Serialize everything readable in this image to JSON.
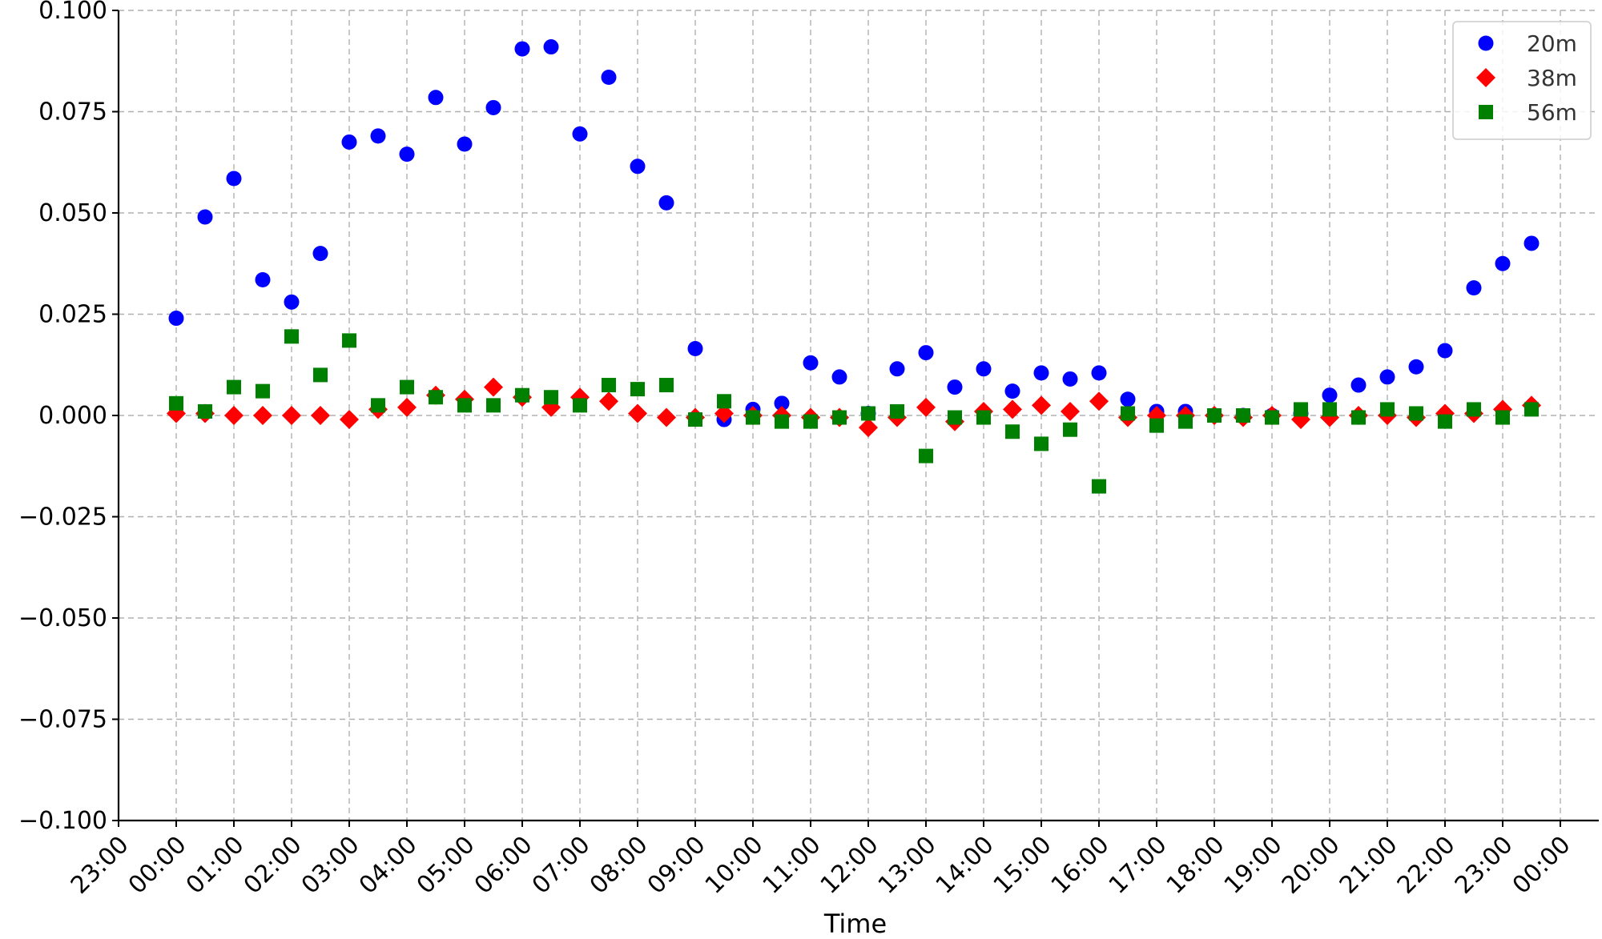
{
  "chart_data": {
    "type": "scatter",
    "title": "",
    "xlabel": "Time",
    "ylabel": "",
    "x_tick_labels": [
      "23:00",
      "00:00",
      "01:00",
      "02:00",
      "03:00",
      "04:00",
      "05:00",
      "06:00",
      "07:00",
      "08:00",
      "09:00",
      "10:00",
      "11:00",
      "12:00",
      "13:00",
      "14:00",
      "15:00",
      "16:00",
      "17:00",
      "18:00",
      "19:00",
      "20:00",
      "21:00",
      "22:00",
      "23:00",
      "00:00"
    ],
    "y_tick_labels": [
      "0.100",
      "0.075",
      "0.050",
      "0.025",
      "0.000",
      "−0.025",
      "−0.050",
      "−0.075",
      "−0.100"
    ],
    "y_ticks": [
      0.1,
      0.075,
      0.05,
      0.025,
      0,
      -0.025,
      -0.05,
      -0.075,
      -0.1
    ],
    "xlim": [
      "23:00",
      "00:00"
    ],
    "ylim": [
      -0.1,
      0.1
    ],
    "grid": true,
    "legend_position": "top-right",
    "x": [
      "00:00",
      "00:30",
      "01:00",
      "01:30",
      "02:00",
      "02:30",
      "03:00",
      "03:30",
      "04:00",
      "04:30",
      "05:00",
      "05:30",
      "06:00",
      "06:30",
      "07:00",
      "07:30",
      "08:00",
      "08:30",
      "09:00",
      "09:30",
      "10:00",
      "10:30",
      "11:00",
      "11:30",
      "12:00",
      "12:30",
      "13:00",
      "13:30",
      "14:00",
      "14:30",
      "15:00",
      "15:30",
      "16:00",
      "16:30",
      "17:00",
      "17:30",
      "18:00",
      "18:30",
      "19:00",
      "19:30",
      "20:00",
      "20:30",
      "21:00",
      "21:30",
      "22:00",
      "22:30",
      "23:00",
      "23:30"
    ],
    "series": [
      {
        "name": "20m",
        "color": "#0000ff",
        "marker": "circle",
        "values": [
          0.024,
          0.049,
          0.0585,
          0.0335,
          0.028,
          0.04,
          0.0675,
          0.069,
          0.0645,
          0.0785,
          0.067,
          0.076,
          0.0905,
          0.091,
          0.0695,
          0.0835,
          0.0615,
          0.0525,
          0.0165,
          -0.001,
          0.0015,
          0.003,
          0.013,
          0.0095,
          0.0005,
          0.0115,
          0.0155,
          0.007,
          0.0115,
          0.006,
          0.0105,
          0.009,
          0.0105,
          0.004,
          0.001,
          0.001,
          0.0,
          0.0,
          0.0,
          0.0005,
          0.005,
          0.0075,
          0.0095,
          0.012,
          0.016,
          0.0315,
          0.0375,
          0.0425
        ]
      },
      {
        "name": "38m",
        "color": "#ff0000",
        "marker": "diamond",
        "values": [
          0.0005,
          0.0005,
          0.0,
          0.0,
          0.0,
          0.0,
          -0.001,
          0.0015,
          0.002,
          0.005,
          0.004,
          0.007,
          0.0045,
          0.002,
          0.0045,
          0.0035,
          0.0005,
          -0.0005,
          -0.0005,
          0.0005,
          0.0,
          0.0,
          -0.0005,
          -0.0005,
          -0.003,
          -0.0005,
          0.002,
          -0.0015,
          0.001,
          0.0015,
          0.0025,
          0.001,
          0.0035,
          -0.0005,
          0.0,
          0.0,
          0.0,
          -0.0005,
          0.0,
          -0.001,
          -0.0005,
          0.0,
          0.0,
          -0.0005,
          0.0005,
          0.0005,
          0.0015,
          0.0025
        ]
      },
      {
        "name": "56m",
        "color": "#008000",
        "marker": "square",
        "values": [
          0.003,
          0.001,
          0.007,
          0.006,
          0.0195,
          0.01,
          0.0185,
          0.0025,
          0.007,
          0.0045,
          0.0025,
          0.0025,
          0.005,
          0.0045,
          0.0025,
          0.0075,
          0.0065,
          0.0075,
          -0.001,
          0.0035,
          -0.0005,
          -0.0015,
          -0.0015,
          -0.0005,
          0.0005,
          0.001,
          -0.01,
          -0.0005,
          -0.0005,
          -0.004,
          -0.007,
          -0.0035,
          -0.0175,
          0.0005,
          -0.0025,
          -0.0015,
          0.0,
          0.0,
          -0.0005,
          0.0015,
          0.0015,
          -0.0005,
          0.0015,
          0.0005,
          -0.0015,
          0.0015,
          -0.0005,
          0.0015
        ]
      }
    ]
  }
}
